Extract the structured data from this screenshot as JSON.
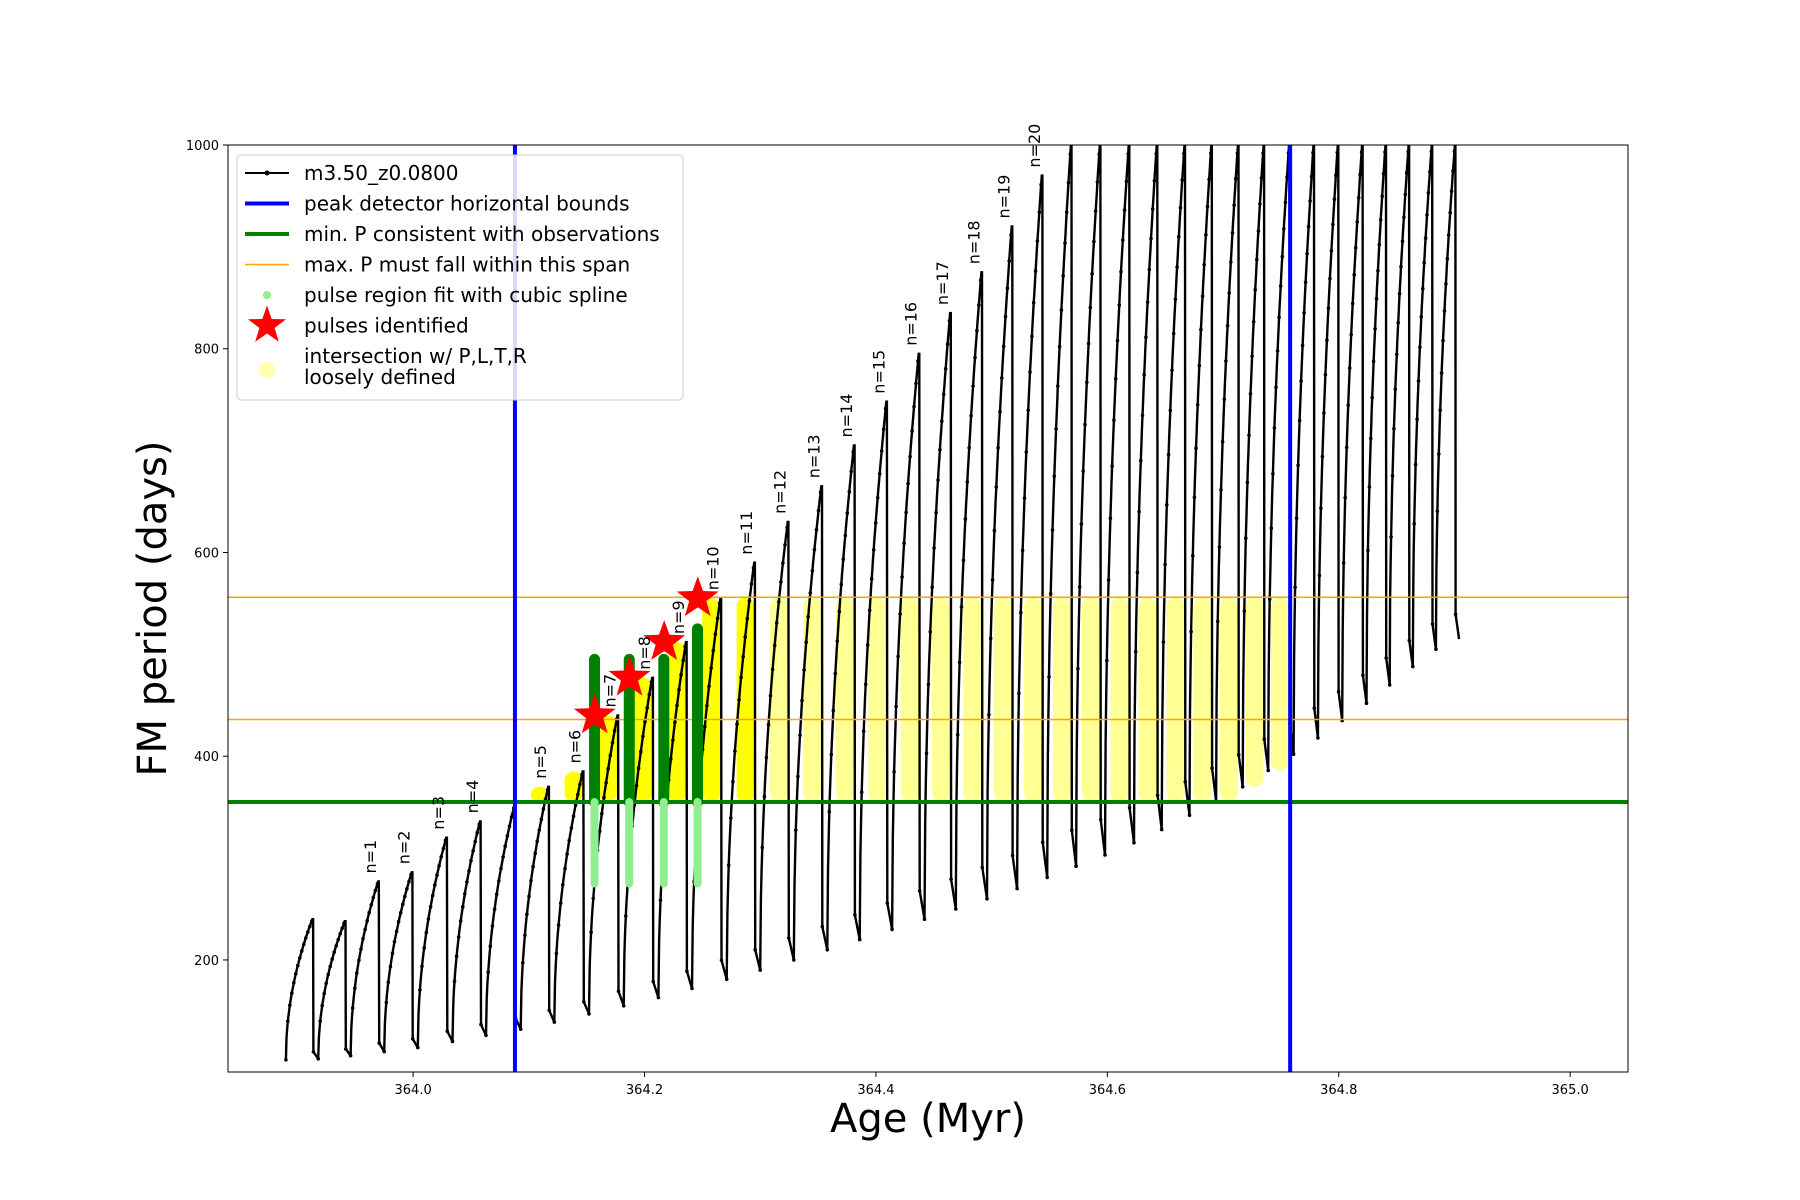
{
  "chart_data": {
    "type": "line",
    "xlabel": "Age (Myr)",
    "ylabel": "FM period (days)",
    "xlim": [
      363.84,
      365.05
    ],
    "ylim": [
      90,
      1000
    ],
    "x_ticks": [
      364.0,
      364.2,
      364.4,
      364.6,
      364.8,
      365.0
    ],
    "x_tick_labels": [
      "364.0",
      "364.2",
      "364.4",
      "364.6",
      "364.8",
      "365.0"
    ],
    "y_ticks": [
      200,
      400,
      600,
      800,
      1000
    ],
    "y_tick_labels": [
      "200",
      "400",
      "600",
      "800",
      "1000"
    ],
    "grid": false,
    "legend_position": "top-left",
    "legend": [
      {
        "label": "m3.50_z0.0800",
        "style": "black-line-dots",
        "color": "#000000"
      },
      {
        "label": "peak detector horizontal bounds",
        "style": "thick-line",
        "color": "#0000ff"
      },
      {
        "label": "min. P consistent with observations",
        "style": "thick-line",
        "color": "#008000"
      },
      {
        "label": "max. P must fall within this span",
        "style": "thin-line",
        "color": "#ffa500"
      },
      {
        "label": "pulse region fit with cubic spline",
        "style": "dot",
        "color": "#90ee90"
      },
      {
        "label": "pulses identified",
        "style": "star",
        "color": "#ff0000"
      },
      {
        "label": "intersection w/ P,L,T,R\nloosely defined",
        "style": "circle",
        "color": "#ffffb0"
      }
    ],
    "vertical_lines": [
      {
        "x": 364.088,
        "color": "#0000ff"
      },
      {
        "x": 364.758,
        "color": "#0000ff"
      }
    ],
    "horizontal_lines": [
      {
        "y": 355,
        "color": "#008000",
        "role": "min"
      },
      {
        "y": 436,
        "color": "#ffa500",
        "role": "max-low"
      },
      {
        "y": 556,
        "color": "#ffa500",
        "role": "max-high"
      }
    ],
    "pulses": [
      {
        "start": 363.89,
        "end": 363.918,
        "min": 102,
        "peak": 240,
        "label": ""
      },
      {
        "start": 363.918,
        "end": 363.946,
        "min": 103,
        "peak": 238,
        "label": ""
      },
      {
        "start": 363.946,
        "end": 363.975,
        "min": 106,
        "peak": 277,
        "label": "n=1"
      },
      {
        "start": 363.975,
        "end": 364.004,
        "min": 110,
        "peak": 286,
        "label": "n=2"
      },
      {
        "start": 364.004,
        "end": 364.034,
        "min": 114,
        "peak": 320,
        "label": "n=3"
      },
      {
        "start": 364.034,
        "end": 364.063,
        "min": 120,
        "peak": 336,
        "label": "n=4"
      },
      {
        "start": 364.063,
        "end": 364.093,
        "min": 126,
        "peak": 352,
        "label": ""
      },
      {
        "start": 364.093,
        "end": 364.122,
        "min": 132,
        "peak": 370,
        "label": "n=5"
      },
      {
        "start": 364.122,
        "end": 364.152,
        "min": 139,
        "peak": 385,
        "label": "n=6"
      },
      {
        "start": 364.152,
        "end": 364.182,
        "min": 147,
        "peak": 440,
        "label": "n=7"
      },
      {
        "start": 364.182,
        "end": 364.212,
        "min": 155,
        "peak": 477,
        "label": "n=8"
      },
      {
        "start": 364.212,
        "end": 364.241,
        "min": 163,
        "peak": 512,
        "label": "n=9"
      },
      {
        "start": 364.241,
        "end": 364.271,
        "min": 172,
        "peak": 555,
        "label": "n=10"
      },
      {
        "start": 364.271,
        "end": 364.3,
        "min": 181,
        "peak": 590,
        "label": "n=11"
      },
      {
        "start": 364.3,
        "end": 364.329,
        "min": 190,
        "peak": 630,
        "label": "n=12"
      },
      {
        "start": 364.329,
        "end": 364.358,
        "min": 200,
        "peak": 665,
        "label": "n=13"
      },
      {
        "start": 364.358,
        "end": 364.386,
        "min": 210,
        "peak": 705,
        "label": "n=14"
      },
      {
        "start": 364.386,
        "end": 364.414,
        "min": 220,
        "peak": 748,
        "label": "n=15"
      },
      {
        "start": 364.414,
        "end": 364.442,
        "min": 230,
        "peak": 795,
        "label": "n=16"
      },
      {
        "start": 364.442,
        "end": 364.469,
        "min": 240,
        "peak": 835,
        "label": "n=17"
      },
      {
        "start": 364.469,
        "end": 364.496,
        "min": 250,
        "peak": 875,
        "label": "n=18"
      },
      {
        "start": 364.496,
        "end": 364.522,
        "min": 260,
        "peak": 920,
        "label": "n=19"
      },
      {
        "start": 364.522,
        "end": 364.548,
        "min": 270,
        "peak": 970,
        "label": "n=20"
      },
      {
        "start": 364.548,
        "end": 364.573,
        "min": 281,
        "peak": 1000,
        "label": ""
      },
      {
        "start": 364.573,
        "end": 364.598,
        "min": 292,
        "peak": 1000,
        "label": ""
      },
      {
        "start": 364.598,
        "end": 364.623,
        "min": 303,
        "peak": 1000,
        "label": ""
      },
      {
        "start": 364.623,
        "end": 364.647,
        "min": 315,
        "peak": 1000,
        "label": ""
      },
      {
        "start": 364.647,
        "end": 364.671,
        "min": 328,
        "peak": 1000,
        "label": ""
      },
      {
        "start": 364.671,
        "end": 364.694,
        "min": 342,
        "peak": 1000,
        "label": ""
      },
      {
        "start": 364.694,
        "end": 364.717,
        "min": 356,
        "peak": 1000,
        "label": ""
      },
      {
        "start": 364.717,
        "end": 364.739,
        "min": 370,
        "peak": 1000,
        "label": ""
      },
      {
        "start": 364.739,
        "end": 364.761,
        "min": 386,
        "peak": 1000,
        "label": ""
      },
      {
        "start": 364.761,
        "end": 364.782,
        "min": 402,
        "peak": 1000,
        "label": ""
      },
      {
        "start": 364.782,
        "end": 364.803,
        "min": 418,
        "peak": 1000,
        "label": ""
      },
      {
        "start": 364.803,
        "end": 364.824,
        "min": 435,
        "peak": 1000,
        "label": ""
      },
      {
        "start": 364.824,
        "end": 364.844,
        "min": 452,
        "peak": 1000,
        "label": ""
      },
      {
        "start": 364.844,
        "end": 364.864,
        "min": 470,
        "peak": 1000,
        "label": ""
      },
      {
        "start": 364.864,
        "end": 364.884,
        "min": 488,
        "peak": 1000,
        "label": ""
      },
      {
        "start": 364.884,
        "end": 364.904,
        "min": 505,
        "peak": 1000,
        "label": ""
      }
    ],
    "stars": [
      {
        "x": 364.157,
        "y": 440
      },
      {
        "x": 364.187,
        "y": 477
      },
      {
        "x": 364.217,
        "y": 512
      },
      {
        "x": 364.246,
        "y": 555
      }
    ],
    "spline_fit_pulses": [
      7,
      8,
      9,
      10
    ],
    "legend_series_name": "m3.50_z0.0800"
  }
}
